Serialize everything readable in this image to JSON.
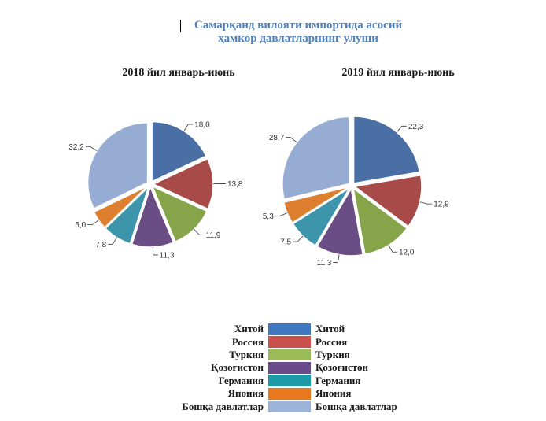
{
  "title_line1": "Самарқанд вилояти импортида асосий",
  "title_line2": "ҳамкор давлатларнинг улуши",
  "legend_left": [
    {
      "label": "Хитой",
      "color": "#3f77c0"
    },
    {
      "label": "Россия",
      "color": "#c8504d"
    },
    {
      "label": "Туркия",
      "color": "#9bbb59"
    },
    {
      "label": "Қозоғистон",
      "color": "#6a4c8a"
    },
    {
      "label": "Германия",
      "color": "#1c9aa8"
    },
    {
      "label": "Япония",
      "color": "#e8771d"
    },
    {
      "label": "Бошқа давлатлар",
      "color": "#9cb4da"
    }
  ],
  "legend_right": [
    "Хитой",
    "Россия",
    "Туркия",
    "Қозоғистон",
    "Германия",
    "Япония",
    "Бошқа давлатлар"
  ],
  "chart_data": [
    {
      "type": "pie",
      "title": "2018 йил январь-июнь",
      "categories": [
        "Хитой",
        "Россия",
        "Туркия",
        "Қозоғистон",
        "Германия",
        "Япония",
        "Бошқа давлатлар"
      ],
      "values": [
        18.0,
        13.8,
        11.9,
        11.3,
        7.8,
        5.0,
        32.2
      ],
      "value_labels": [
        "18,0",
        "13,8",
        "11,9",
        "11,3",
        "7,8",
        "5,0",
        "32,2"
      ],
      "colors": [
        "#4a6fa5",
        "#a84a48",
        "#86a54b",
        "#6a4d85",
        "#3d95ab",
        "#de7f30",
        "#97acd2"
      ]
    },
    {
      "type": "pie",
      "title": "2019 йил январь-июнь",
      "categories": [
        "Хитой",
        "Россия",
        "Туркия",
        "Қозоғистон",
        "Германия",
        "Япония",
        "Бошқа давлатлар"
      ],
      "values": [
        22.3,
        12.9,
        12.0,
        11.3,
        7.5,
        5.3,
        28.7
      ],
      "value_labels": [
        "22,3",
        "12,9",
        "12,0",
        "11,3",
        "7,5",
        "5,3",
        "28,7"
      ],
      "colors": [
        "#4a6fa5",
        "#a84a48",
        "#86a54b",
        "#6a4d85",
        "#3d95ab",
        "#de7f30",
        "#97acd2"
      ]
    }
  ]
}
